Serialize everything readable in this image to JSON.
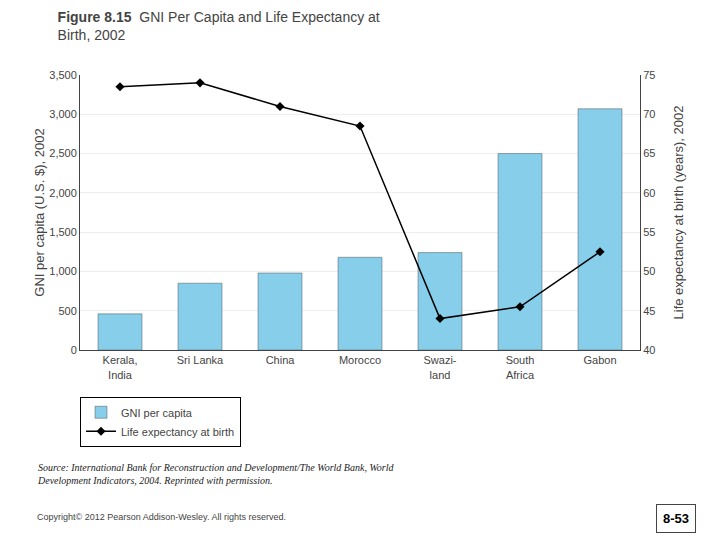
{
  "chart_data": {
    "type": "bar",
    "title": "Figure 8.15",
    "subtitle": "GNI Per Capita and Life Expectancy at\nBirth, 2002",
    "categories": [
      "Kerala,\nIndia",
      "Sri Lanka",
      "China",
      "Morocco",
      "Swazi-\nland",
      "South\nAfrica",
      "Gabon"
    ],
    "series": [
      {
        "name": "GNI per capita",
        "type": "bar",
        "color": "#87CEEB",
        "values": [
          460,
          850,
          980,
          1180,
          1240,
          2500,
          3070
        ]
      },
      {
        "name": "Life expectancy at birth",
        "type": "line",
        "color": "#000000",
        "marker": "diamond",
        "axis": "y2",
        "values": [
          73.5,
          74.0,
          71.0,
          68.5,
          44.0,
          45.5,
          52.5
        ]
      }
    ],
    "ylabel": "GNI per capita (U.S. $), 2002",
    "y2label": "Life expectancy at birth (years), 2002",
    "ylim": [
      0,
      3500
    ],
    "yticks": [
      0,
      500,
      {
        "value": 1000,
        "label": "1,000"
      },
      {
        "value": 1500,
        "label": "1,500"
      },
      {
        "value": 2000,
        "label": "2,000"
      },
      {
        "value": 2500,
        "label": "2,500"
      },
      {
        "value": 3000,
        "label": "3,000"
      },
      {
        "value": 3500,
        "label": "3,500"
      }
    ],
    "y2lim": [
      40,
      75
    ],
    "y2ticks": [
      40,
      45,
      50,
      55,
      60,
      65,
      70,
      75
    ],
    "grid": true,
    "legend": "lower left",
    "annotations": [
      "Source: International Bank for Reconstruction and Development/The World Bank, World\nDevelopment Indicators, 2004. Reprinted with permission.",
      "Copyright© 2012 Pearson Addison-Wesley. All rights reserved.",
      "8-53"
    ]
  }
}
